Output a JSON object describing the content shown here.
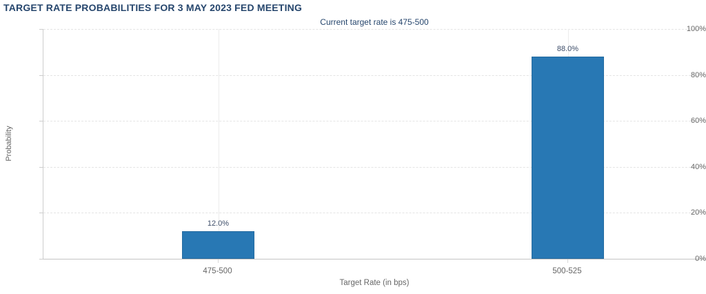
{
  "chart_data": {
    "type": "bar",
    "title": "TARGET RATE PROBABILITIES FOR 3 MAY 2023 FED MEETING",
    "subtitle": "Current target rate is 475-500",
    "categories": [
      "475-500",
      "500-525"
    ],
    "series": [
      {
        "name": "Probability",
        "values": [
          12.0,
          88.0
        ]
      }
    ],
    "value_labels": [
      "12.0%",
      "88.0%"
    ],
    "xlabel": "Target Rate (in bps)",
    "ylabel": "Probability",
    "ylim": [
      0,
      100
    ],
    "y_tick_labels": [
      "0%",
      "20%",
      "40%",
      "60%",
      "80%",
      "100%"
    ],
    "grid": true,
    "legend_position": "none",
    "colors": {
      "bar": "#2878b4",
      "bar_border": "#236a9f",
      "title": "#26466d",
      "subtitle": "#26466d",
      "axis_text": "#666666",
      "data_label": "#3d4d69",
      "gridline": "#e4e4e4",
      "axis_line": "#cccccc"
    }
  }
}
